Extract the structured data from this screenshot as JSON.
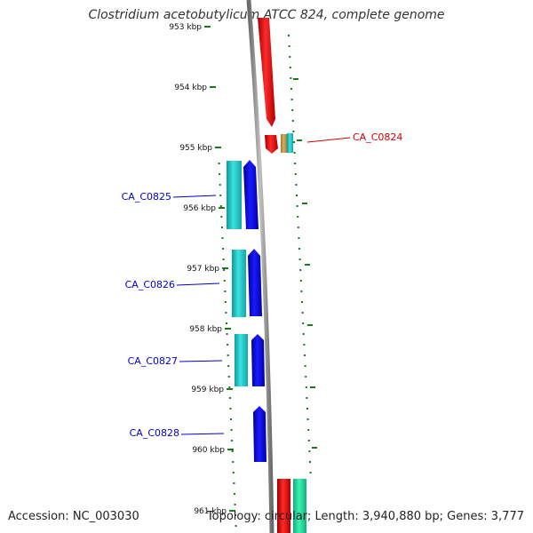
{
  "title": "Clostridium acetobutylicum ATCC 824, complete genome",
  "accession_text": "Accession: NC_003030",
  "summary_text": "Topology: circular; Length: 3,940,880 bp; Genes: 3,777",
  "colors": {
    "backbone": "#8c8c8c",
    "forward_red": "#ff0000",
    "reverse_blue": "#0000ff",
    "cyan": "#22cccc",
    "tan": "#c8a050",
    "green": "#22e0a0",
    "tick": "#1a7a1a",
    "label_red": "#d00000",
    "label_blue": "#0000cc"
  },
  "ticks": [
    {
      "label": "953 kbp"
    },
    {
      "label": "954 kbp"
    },
    {
      "label": "955 kbp"
    },
    {
      "label": "956 kbp"
    },
    {
      "label": "957 kbp"
    },
    {
      "label": "958 kbp"
    },
    {
      "label": "959 kbp"
    },
    {
      "label": "960 kbp"
    },
    {
      "label": "961 kbp"
    }
  ],
  "gene_labels": [
    {
      "text": "CA_C0824",
      "color": "red"
    },
    {
      "text": "CA_C0825",
      "color": "blue"
    },
    {
      "text": "CA_C0826",
      "color": "blue"
    },
    {
      "text": "CA_C0827",
      "color": "blue"
    },
    {
      "text": "CA_C0828",
      "color": "blue"
    }
  ]
}
